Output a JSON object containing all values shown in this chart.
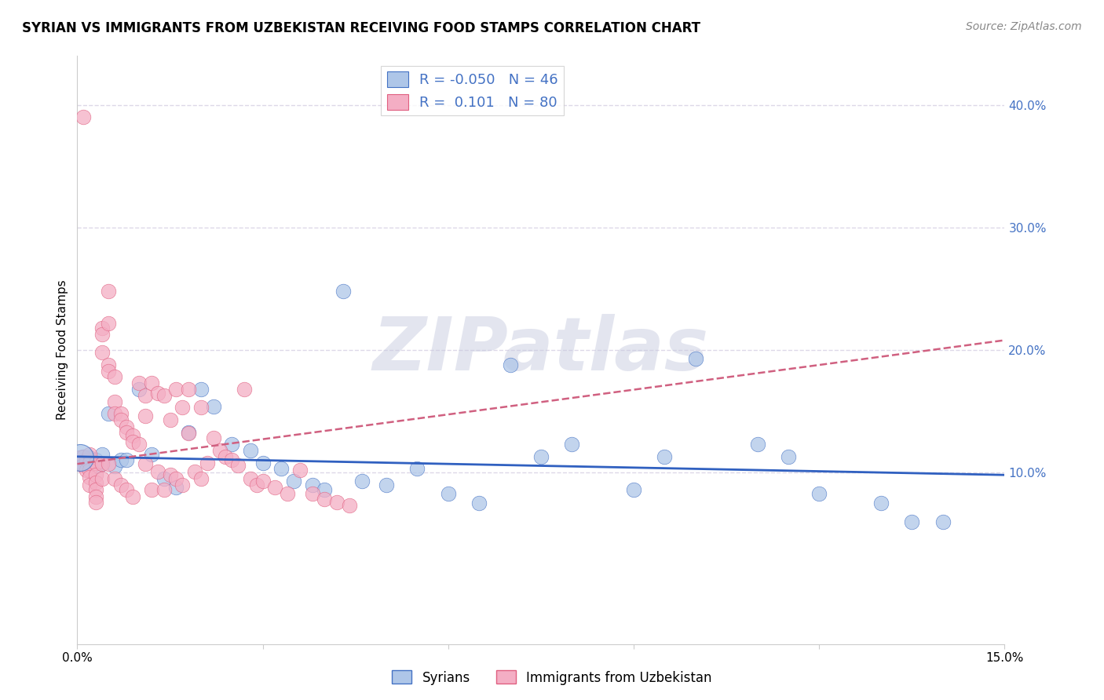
{
  "title": "SYRIAN VS IMMIGRANTS FROM UZBEKISTAN RECEIVING FOOD STAMPS CORRELATION CHART",
  "source": "Source: ZipAtlas.com",
  "ylabel": "Receiving Food Stamps",
  "xlim": [
    0.0,
    0.15
  ],
  "ylim": [
    -0.04,
    0.44
  ],
  "yticks_right": [
    0.1,
    0.2,
    0.3,
    0.4
  ],
  "ytick_labels_right": [
    "10.0%",
    "20.0%",
    "30.0%",
    "40.0%"
  ],
  "blue_color": "#aec6e8",
  "pink_color": "#f4aec4",
  "blue_edge_color": "#4472c4",
  "pink_edge_color": "#e06080",
  "blue_line_color": "#3060c0",
  "pink_line_color": "#d06080",
  "grid_color": "#ddd8e8",
  "watermark": "ZIPatlas",
  "watermark_color": "#c8cce0",
  "legend_blue_label": "R = -0.050   N = 46",
  "legend_pink_label": "R =  0.101   N = 80",
  "blue_line_x0": 0.0,
  "blue_line_y0": 0.113,
  "blue_line_x1": 0.15,
  "blue_line_y1": 0.098,
  "pink_line_x0": 0.0,
  "pink_line_y0": 0.107,
  "pink_line_x1": 0.15,
  "pink_line_y1": 0.208,
  "title_fontsize": 12,
  "source_fontsize": 10,
  "label_fontsize": 11,
  "tick_fontsize": 11,
  "legend_fontsize": 13,
  "blue_scatter_x": [
    0.0005,
    0.001,
    0.001,
    0.0015,
    0.002,
    0.002,
    0.003,
    0.003,
    0.004,
    0.004,
    0.005,
    0.006,
    0.007,
    0.008,
    0.01,
    0.012,
    0.014,
    0.016,
    0.018,
    0.02,
    0.022,
    0.025,
    0.028,
    0.03,
    0.033,
    0.035,
    0.038,
    0.04,
    0.043,
    0.046,
    0.05,
    0.055,
    0.06,
    0.065,
    0.07,
    0.075,
    0.08,
    0.09,
    0.095,
    0.1,
    0.11,
    0.115,
    0.12,
    0.13,
    0.135,
    0.14
  ],
  "blue_scatter_y": [
    0.112,
    0.113,
    0.11,
    0.108,
    0.112,
    0.107,
    0.11,
    0.105,
    0.115,
    0.107,
    0.148,
    0.105,
    0.11,
    0.11,
    0.168,
    0.115,
    0.095,
    0.088,
    0.133,
    0.168,
    0.154,
    0.123,
    0.118,
    0.108,
    0.103,
    0.093,
    0.09,
    0.086,
    0.248,
    0.093,
    0.09,
    0.103,
    0.083,
    0.075,
    0.188,
    0.113,
    0.123,
    0.086,
    0.113,
    0.193,
    0.123,
    0.113,
    0.083,
    0.075,
    0.06,
    0.06
  ],
  "blue_scatter_s_large": 600,
  "blue_scatter_s_small": 180,
  "pink_scatter_x": [
    0.0005,
    0.0005,
    0.001,
    0.001,
    0.001,
    0.0015,
    0.0015,
    0.002,
    0.002,
    0.002,
    0.002,
    0.002,
    0.003,
    0.003,
    0.003,
    0.003,
    0.003,
    0.003,
    0.004,
    0.004,
    0.004,
    0.004,
    0.004,
    0.005,
    0.005,
    0.005,
    0.005,
    0.005,
    0.006,
    0.006,
    0.006,
    0.006,
    0.007,
    0.007,
    0.007,
    0.008,
    0.008,
    0.008,
    0.009,
    0.009,
    0.009,
    0.01,
    0.01,
    0.011,
    0.011,
    0.011,
    0.012,
    0.012,
    0.013,
    0.013,
    0.014,
    0.014,
    0.015,
    0.015,
    0.016,
    0.016,
    0.017,
    0.017,
    0.018,
    0.018,
    0.019,
    0.02,
    0.02,
    0.021,
    0.022,
    0.023,
    0.024,
    0.025,
    0.026,
    0.027,
    0.028,
    0.029,
    0.03,
    0.032,
    0.034,
    0.036,
    0.038,
    0.04,
    0.042,
    0.044
  ],
  "pink_scatter_y": [
    0.112,
    0.107,
    0.39,
    0.113,
    0.106,
    0.11,
    0.102,
    0.115,
    0.108,
    0.102,
    0.096,
    0.09,
    0.108,
    0.098,
    0.092,
    0.086,
    0.08,
    0.076,
    0.218,
    0.213,
    0.198,
    0.107,
    0.095,
    0.248,
    0.222,
    0.188,
    0.183,
    0.107,
    0.178,
    0.158,
    0.148,
    0.095,
    0.148,
    0.143,
    0.09,
    0.137,
    0.133,
    0.086,
    0.13,
    0.125,
    0.08,
    0.123,
    0.173,
    0.163,
    0.146,
    0.107,
    0.173,
    0.086,
    0.165,
    0.101,
    0.163,
    0.086,
    0.143,
    0.098,
    0.168,
    0.095,
    0.153,
    0.09,
    0.168,
    0.132,
    0.101,
    0.153,
    0.095,
    0.108,
    0.128,
    0.118,
    0.113,
    0.11,
    0.106,
    0.168,
    0.095,
    0.09,
    0.093,
    0.088,
    0.083,
    0.102,
    0.083,
    0.078,
    0.076,
    0.073
  ],
  "pink_scatter_s": 180
}
